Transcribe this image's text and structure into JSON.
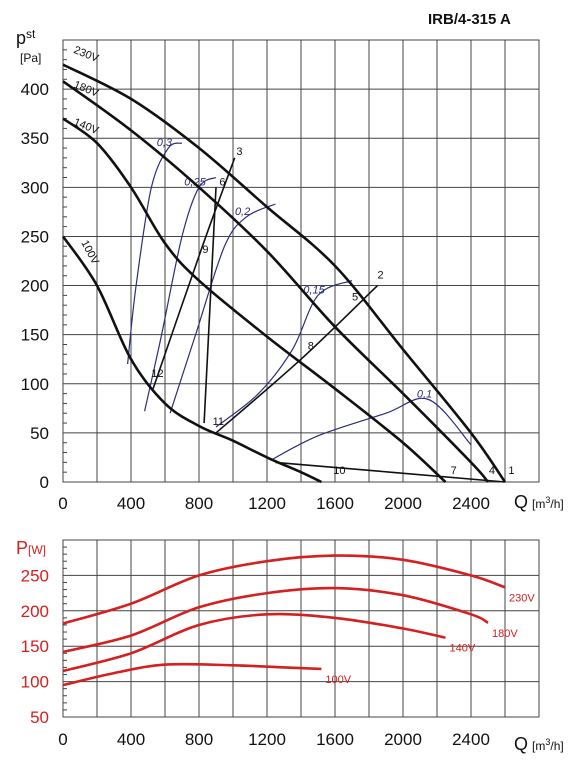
{
  "title": "IRB/4-315 A",
  "colors": {
    "fan_curve": "#111111",
    "power_curve": "#d42020",
    "efficiency_curve": "#2b2d7a",
    "grid": "#444444"
  },
  "top_chart": {
    "ylabel_main": "p",
    "ylabel_sub": "st",
    "ylabel_unit": "[Pa]",
    "xlabel": "Q",
    "xunit": "[m",
    "xunit_sup": "3",
    "xunit_end": "/h]",
    "yticks": [
      "0",
      "50",
      "100",
      "150",
      "200",
      "250",
      "300",
      "350",
      "400"
    ],
    "xticks": [
      "0",
      "400",
      "800",
      "1200",
      "1600",
      "2000",
      "2400"
    ]
  },
  "bottom_chart": {
    "ylabel_main": "P",
    "ylabel_unit": "[W]",
    "xlabel": "Q",
    "xunit": "[m",
    "xunit_sup": "3",
    "xunit_end": "/h]",
    "yticks": [
      "50",
      "100",
      "150",
      "200",
      "250"
    ],
    "xticks": [
      "0",
      "400",
      "800",
      "1200",
      "1600",
      "2000",
      "2400"
    ]
  },
  "chart_data": [
    {
      "type": "line",
      "title": "IRB/4-315 A",
      "xlabel": "Q [m3/h]",
      "ylabel": "pst [Pa]",
      "xlim": [
        0,
        2800
      ],
      "ylim": [
        0,
        450
      ],
      "grid": true,
      "series": [
        {
          "name": "230V",
          "x": [
            0,
            400,
            800,
            1200,
            1600,
            2000,
            2400,
            2600
          ],
          "y": [
            425,
            390,
            340,
            280,
            220,
            135,
            50,
            0
          ]
        },
        {
          "name": "180V",
          "x": [
            0,
            400,
            800,
            1200,
            1600,
            2000,
            2400,
            2500
          ],
          "y": [
            408,
            358,
            300,
            235,
            158,
            90,
            20,
            0
          ]
        },
        {
          "name": "140V",
          "x": [
            0,
            200,
            400,
            600,
            800,
            1200,
            1600,
            2000,
            2250
          ],
          "y": [
            370,
            345,
            300,
            243,
            205,
            148,
            95,
            40,
            0
          ]
        },
        {
          "name": "100V",
          "x": [
            0,
            200,
            400,
            600,
            800,
            1000,
            1200,
            1400,
            1520
          ],
          "y": [
            250,
            200,
            125,
            80,
            57,
            42,
            25,
            10,
            0
          ]
        }
      ],
      "efficiency_curves": [
        {
          "label": "0,3",
          "x": [
            380,
            430,
            520,
            620,
            700
          ],
          "y": [
            120,
            200,
            300,
            340,
            345
          ]
        },
        {
          "label": "0,25",
          "x": [
            480,
            580,
            700,
            800,
            900
          ],
          "y": [
            72,
            150,
            250,
            300,
            310
          ]
        },
        {
          "label": "0,2",
          "x": [
            630,
            780,
            950,
            1080,
            1250
          ],
          "y": [
            70,
            150,
            240,
            270,
            283
          ]
        },
        {
          "label": "0,15",
          "x": [
            900,
            1150,
            1350,
            1500,
            1700
          ],
          "y": [
            56,
            90,
            135,
            190,
            205
          ]
        },
        {
          "label": "0,1",
          "x": [
            1220,
            1500,
            1900,
            2150,
            2400
          ],
          "y": [
            22,
            47,
            70,
            84,
            38
          ]
        }
      ],
      "annotations": [
        {
          "text": "1",
          "x": 2620,
          "y": 8
        },
        {
          "text": "2",
          "x": 1850,
          "y": 207
        },
        {
          "text": "3",
          "x": 1020,
          "y": 333
        },
        {
          "text": "4",
          "x": 2505,
          "y": 8
        },
        {
          "text": "5",
          "x": 1700,
          "y": 185
        },
        {
          "text": "6",
          "x": 920,
          "y": 302
        },
        {
          "text": "7",
          "x": 2280,
          "y": 8
        },
        {
          "text": "8",
          "x": 1440,
          "y": 135
        },
        {
          "text": "9",
          "x": 820,
          "y": 233
        },
        {
          "text": "10",
          "x": 1590,
          "y": 8
        },
        {
          "text": "11",
          "x": 880,
          "y": 58
        },
        {
          "text": "12",
          "x": 520,
          "y": 107
        }
      ],
      "operating_lines": [
        {
          "label": "3",
          "x": [
            530,
            820,
            1010
          ],
          "y": [
            95,
            240,
            330
          ]
        },
        {
          "label": "6",
          "x": [
            830,
            900
          ],
          "y": [
            60,
            300
          ]
        },
        {
          "label": "2",
          "x": [
            900,
            1400,
            1850
          ],
          "y": [
            50,
            125,
            200
          ]
        },
        {
          "label": "1",
          "x": [
            1250,
            2600
          ],
          "y": [
            20,
            0
          ]
        }
      ]
    },
    {
      "type": "line",
      "xlabel": "Q [m3/h]",
      "ylabel": "P [W]",
      "xlim": [
        0,
        2800
      ],
      "ylim": [
        50,
        300
      ],
      "grid": true,
      "series": [
        {
          "name": "230V",
          "x": [
            0,
            400,
            800,
            1200,
            1600,
            2000,
            2400,
            2600
          ],
          "y": [
            182,
            210,
            250,
            270,
            278,
            272,
            250,
            233
          ]
        },
        {
          "name": "180V",
          "x": [
            0,
            400,
            800,
            1200,
            1600,
            2000,
            2400,
            2500
          ],
          "y": [
            142,
            165,
            205,
            225,
            232,
            222,
            195,
            183
          ]
        },
        {
          "name": "140V",
          "x": [
            0,
            400,
            800,
            1200,
            1600,
            2000,
            2250
          ],
          "y": [
            115,
            140,
            180,
            195,
            190,
            175,
            162
          ]
        },
        {
          "name": "100V",
          "x": [
            0,
            300,
            600,
            1000,
            1300,
            1520
          ],
          "y": [
            95,
            112,
            124,
            123,
            120,
            118
          ]
        }
      ]
    }
  ]
}
